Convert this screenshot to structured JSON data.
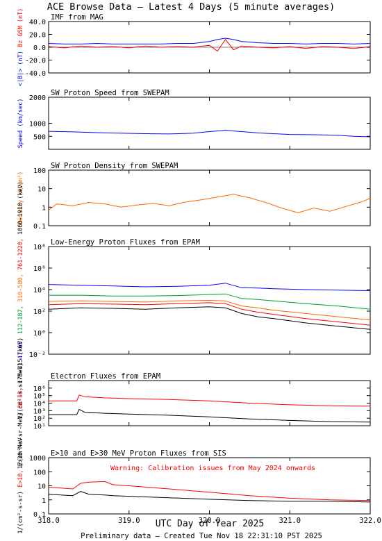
{
  "page": {
    "title": "ACE Browse Data – Latest 4 Days (5 minute averages)",
    "footer": "Preliminary data – Created Tue Nov 18 22:31:10 PST 2025"
  },
  "colors": {
    "blue": "#0000ff",
    "red": "#ff0000",
    "orange": "#ff6600",
    "green": "#009933",
    "black": "#000000"
  },
  "chart_data": [
    {
      "type": "line",
      "title": "IMF from MAG",
      "ylabel_parts": [
        {
          "text": "<|B|> (nT)",
          "color": "#0000ff"
        },
        {
          "text": "Bz GSM (nT)",
          "color": "#ff0000"
        }
      ],
      "ylim": [
        -40,
        40
      ],
      "scale": "linear",
      "yticks": [
        "40.0",
        "20.0",
        "0.0",
        "-20.0",
        "-40.0"
      ],
      "ytick_values": [
        40,
        20,
        0,
        -20,
        -40
      ],
      "zero_line": true,
      "grid": false,
      "series": [
        {
          "color": "#0000ff",
          "x": [
            318.0,
            318.2,
            318.4,
            318.6,
            318.8,
            319.0,
            319.2,
            319.4,
            319.6,
            319.8,
            320.0,
            320.1,
            320.2,
            320.3,
            320.4,
            320.6,
            320.8,
            321.0,
            321.2,
            321.4,
            321.6,
            321.8,
            322.0
          ],
          "y": [
            6,
            5,
            5,
            6,
            5,
            5,
            5,
            5,
            6,
            6,
            9,
            12,
            14,
            12,
            9,
            7,
            6,
            6,
            5,
            6,
            6,
            5,
            6
          ]
        },
        {
          "color": "#ff0000",
          "x": [
            318.0,
            318.2,
            318.4,
            318.6,
            318.8,
            319.0,
            319.2,
            319.4,
            319.6,
            319.8,
            320.0,
            320.1,
            320.2,
            320.3,
            320.4,
            320.6,
            320.8,
            321.0,
            321.2,
            321.4,
            321.6,
            321.8,
            322.0
          ],
          "y": [
            1,
            -1,
            2,
            0,
            1,
            -1,
            2,
            0,
            1,
            0,
            3,
            -6,
            12,
            -4,
            2,
            0,
            -1,
            1,
            -2,
            1,
            0,
            -2,
            1
          ]
        }
      ]
    },
    {
      "type": "line",
      "title": "SW Proton Speed from SWEPAM",
      "ylabel_parts": [
        {
          "text": "Speed (km/sec)",
          "color": "#0000ff"
        }
      ],
      "ylim": [
        0,
        2000
      ],
      "scale": "linear",
      "yticks": [
        "2000",
        "1000",
        "500"
      ],
      "ytick_values": [
        2000,
        1000,
        500
      ],
      "grid": false,
      "series": [
        {
          "color": "#0000ff",
          "x": [
            318.0,
            318.3,
            318.6,
            318.9,
            319.2,
            319.5,
            319.8,
            320.0,
            320.2,
            320.4,
            320.6,
            320.8,
            321.0,
            321.3,
            321.6,
            321.8,
            322.0
          ],
          "y": [
            690,
            670,
            640,
            620,
            600,
            590,
            620,
            680,
            730,
            680,
            630,
            600,
            570,
            560,
            540,
            500,
            480
          ]
        }
      ]
    },
    {
      "type": "line",
      "title": "SW Proton Density from SWEPAM",
      "ylabel_parts": [
        {
          "text": "Density (#/cm³)",
          "color": "#ff6600"
        }
      ],
      "ylim": [
        0.1,
        100
      ],
      "scale": "log",
      "yticks": [
        "100",
        "10",
        "1",
        "0.1"
      ],
      "ytick_values": [
        100,
        10,
        1,
        0.1
      ],
      "grid": false,
      "series": [
        {
          "color": "#ff6600",
          "x": [
            318.0,
            318.1,
            318.3,
            318.5,
            318.7,
            318.9,
            319.1,
            319.3,
            319.5,
            319.7,
            319.9,
            320.1,
            320.3,
            320.5,
            320.7,
            320.9,
            321.1,
            321.3,
            321.5,
            321.7,
            321.9,
            322.0
          ],
          "y": [
            0.7,
            1.5,
            1.2,
            1.8,
            1.5,
            1.0,
            1.3,
            1.6,
            1.2,
            1.9,
            2.5,
            3.5,
            5,
            3.2,
            1.8,
            0.9,
            0.5,
            0.9,
            0.6,
            1.1,
            2.0,
            3.0
          ]
        }
      ]
    },
    {
      "type": "line",
      "title": "Low-Energy Proton Fluxes from EPAM",
      "ylabel_parts": [
        {
          "text": "1/(cm²-s-sr-MeV)",
          "color": "#000000"
        },
        {
          "text": "47-65,",
          "color": "#0000ff"
        },
        {
          "text": "112-187,",
          "color": "#009933"
        },
        {
          "text": "310-580,",
          "color": "#ff6600"
        },
        {
          "text": "761-1220,",
          "color": "#ff0000"
        },
        {
          "text": "1060-1910 (keV)",
          "color": "#000000"
        }
      ],
      "ylim": [
        0.01,
        100000000
      ],
      "scale": "log",
      "yticks": [
        "10⁸",
        "10⁶",
        "10⁴",
        "10²",
        "10⁰",
        "10⁻²"
      ],
      "ytick_values": [
        100000000,
        1000000,
        10000,
        100,
        1,
        0.01
      ],
      "grid": false,
      "series": [
        {
          "color": "#0000ff",
          "x": [
            318.0,
            318.4,
            318.8,
            319.2,
            319.6,
            320.0,
            320.2,
            320.4,
            320.6,
            320.8,
            321.2,
            321.6,
            322.0
          ],
          "y": [
            30000,
            25000,
            22000,
            18000,
            20000,
            25000,
            40000,
            15000,
            14000,
            12000,
            10000,
            9000,
            8000
          ]
        },
        {
          "color": "#009933",
          "x": [
            318.0,
            318.4,
            318.8,
            319.2,
            319.6,
            320.0,
            320.2,
            320.4,
            320.6,
            320.8,
            321.2,
            321.6,
            322.0
          ],
          "y": [
            3000,
            3000,
            2500,
            2500,
            2800,
            3500,
            4000,
            1500,
            1200,
            900,
            500,
            300,
            150
          ]
        },
        {
          "color": "#ff6600",
          "x": [
            318.0,
            318.4,
            318.8,
            319.2,
            319.6,
            320.0,
            320.2,
            320.4,
            320.6,
            320.8,
            321.2,
            321.6,
            322.0
          ],
          "y": [
            800,
            900,
            800,
            700,
            900,
            1000,
            900,
            300,
            200,
            120,
            60,
            30,
            15
          ]
        },
        {
          "color": "#ff0000",
          "x": [
            318.0,
            318.4,
            318.8,
            319.2,
            319.6,
            320.0,
            320.2,
            320.4,
            320.6,
            320.8,
            321.2,
            321.6,
            322.0
          ],
          "y": [
            400,
            500,
            450,
            400,
            500,
            600,
            500,
            150,
            80,
            50,
            20,
            10,
            5
          ]
        },
        {
          "color": "#000000",
          "x": [
            318.0,
            318.4,
            318.8,
            319.2,
            319.6,
            320.0,
            320.2,
            320.4,
            320.6,
            320.8,
            321.2,
            321.6,
            322.0
          ],
          "y": [
            150,
            200,
            180,
            150,
            200,
            250,
            200,
            60,
            30,
            20,
            8,
            4,
            2
          ]
        }
      ]
    },
    {
      "type": "line",
      "title": "Electron Fluxes from EPAM",
      "ylabel_parts": [
        {
          "text": "1/(cm²-s-sr-MeV)",
          "color": "#000000"
        },
        {
          "text": "38-53,",
          "color": "#ff0000"
        },
        {
          "text": "175-315 (keV)",
          "color": "#000000"
        }
      ],
      "ylim": [
        10,
        10000000
      ],
      "scale": "log",
      "yticks": [
        "10⁶",
        "10⁵",
        "10⁴",
        "10³",
        "10²",
        "10¹"
      ],
      "ytick_values": [
        1000000,
        100000,
        10000,
        1000,
        100,
        10
      ],
      "grid": false,
      "series": [
        {
          "color": "#ff0000",
          "x": [
            318.0,
            318.35,
            318.38,
            318.45,
            318.7,
            319.0,
            319.5,
            320.0,
            320.5,
            321.0,
            321.5,
            322.0
          ],
          "y": [
            20000,
            20000,
            120000,
            70000,
            50000,
            40000,
            30000,
            20000,
            10000,
            6000,
            4500,
            4000
          ]
        },
        {
          "color": "#000000",
          "x": [
            318.0,
            318.35,
            318.38,
            318.45,
            318.7,
            319.0,
            319.5,
            320.0,
            320.5,
            321.0,
            321.5,
            322.0
          ],
          "y": [
            300,
            300,
            1500,
            600,
            450,
            350,
            250,
            150,
            80,
            50,
            35,
            30
          ]
        }
      ]
    },
    {
      "type": "line",
      "title": "E>10 and E>30 MeV Proton Fluxes from SIS",
      "ylabel_parts": [
        {
          "text": "1/(cm²-s-sr)",
          "color": "#000000"
        },
        {
          "text": "E>10,",
          "color": "#ff0000"
        },
        {
          "text": "E>30 MeV",
          "color": "#000000"
        }
      ],
      "ylim": [
        0.1,
        1000
      ],
      "scale": "log",
      "yticks": [
        "1000",
        "100",
        "10",
        "1",
        "0.1"
      ],
      "ytick_values": [
        1000,
        100,
        10,
        1,
        0.1
      ],
      "annotation": "Warning: Calibration issues from May 2024 onwards",
      "grid": false,
      "series": [
        {
          "color": "#ff0000",
          "x": [
            318.0,
            318.3,
            318.4,
            318.5,
            318.7,
            318.8,
            319.0,
            319.5,
            320.0,
            320.5,
            321.0,
            321.5,
            322.0
          ],
          "y": [
            8,
            6,
            15,
            18,
            20,
            12,
            10,
            6,
            3.5,
            2,
            1.3,
            1.0,
            0.9
          ]
        },
        {
          "color": "#000000",
          "x": [
            318.0,
            318.3,
            318.4,
            318.5,
            318.7,
            318.8,
            319.0,
            319.5,
            320.0,
            320.5,
            321.0,
            321.5,
            322.0
          ],
          "y": [
            2.5,
            2,
            4,
            2.5,
            2.2,
            2,
            1.8,
            1.4,
            1.1,
            0.9,
            0.8,
            0.8,
            0.7
          ]
        }
      ]
    }
  ],
  "xaxis": {
    "label": "UTC Day of Year 2025",
    "xlim": [
      318.0,
      322.0
    ],
    "ticks": [
      "318.0",
      "319.0",
      "320.0",
      "321.0",
      "322.0"
    ],
    "tick_values": [
      318.0,
      319.0,
      320.0,
      321.0,
      322.0
    ]
  }
}
